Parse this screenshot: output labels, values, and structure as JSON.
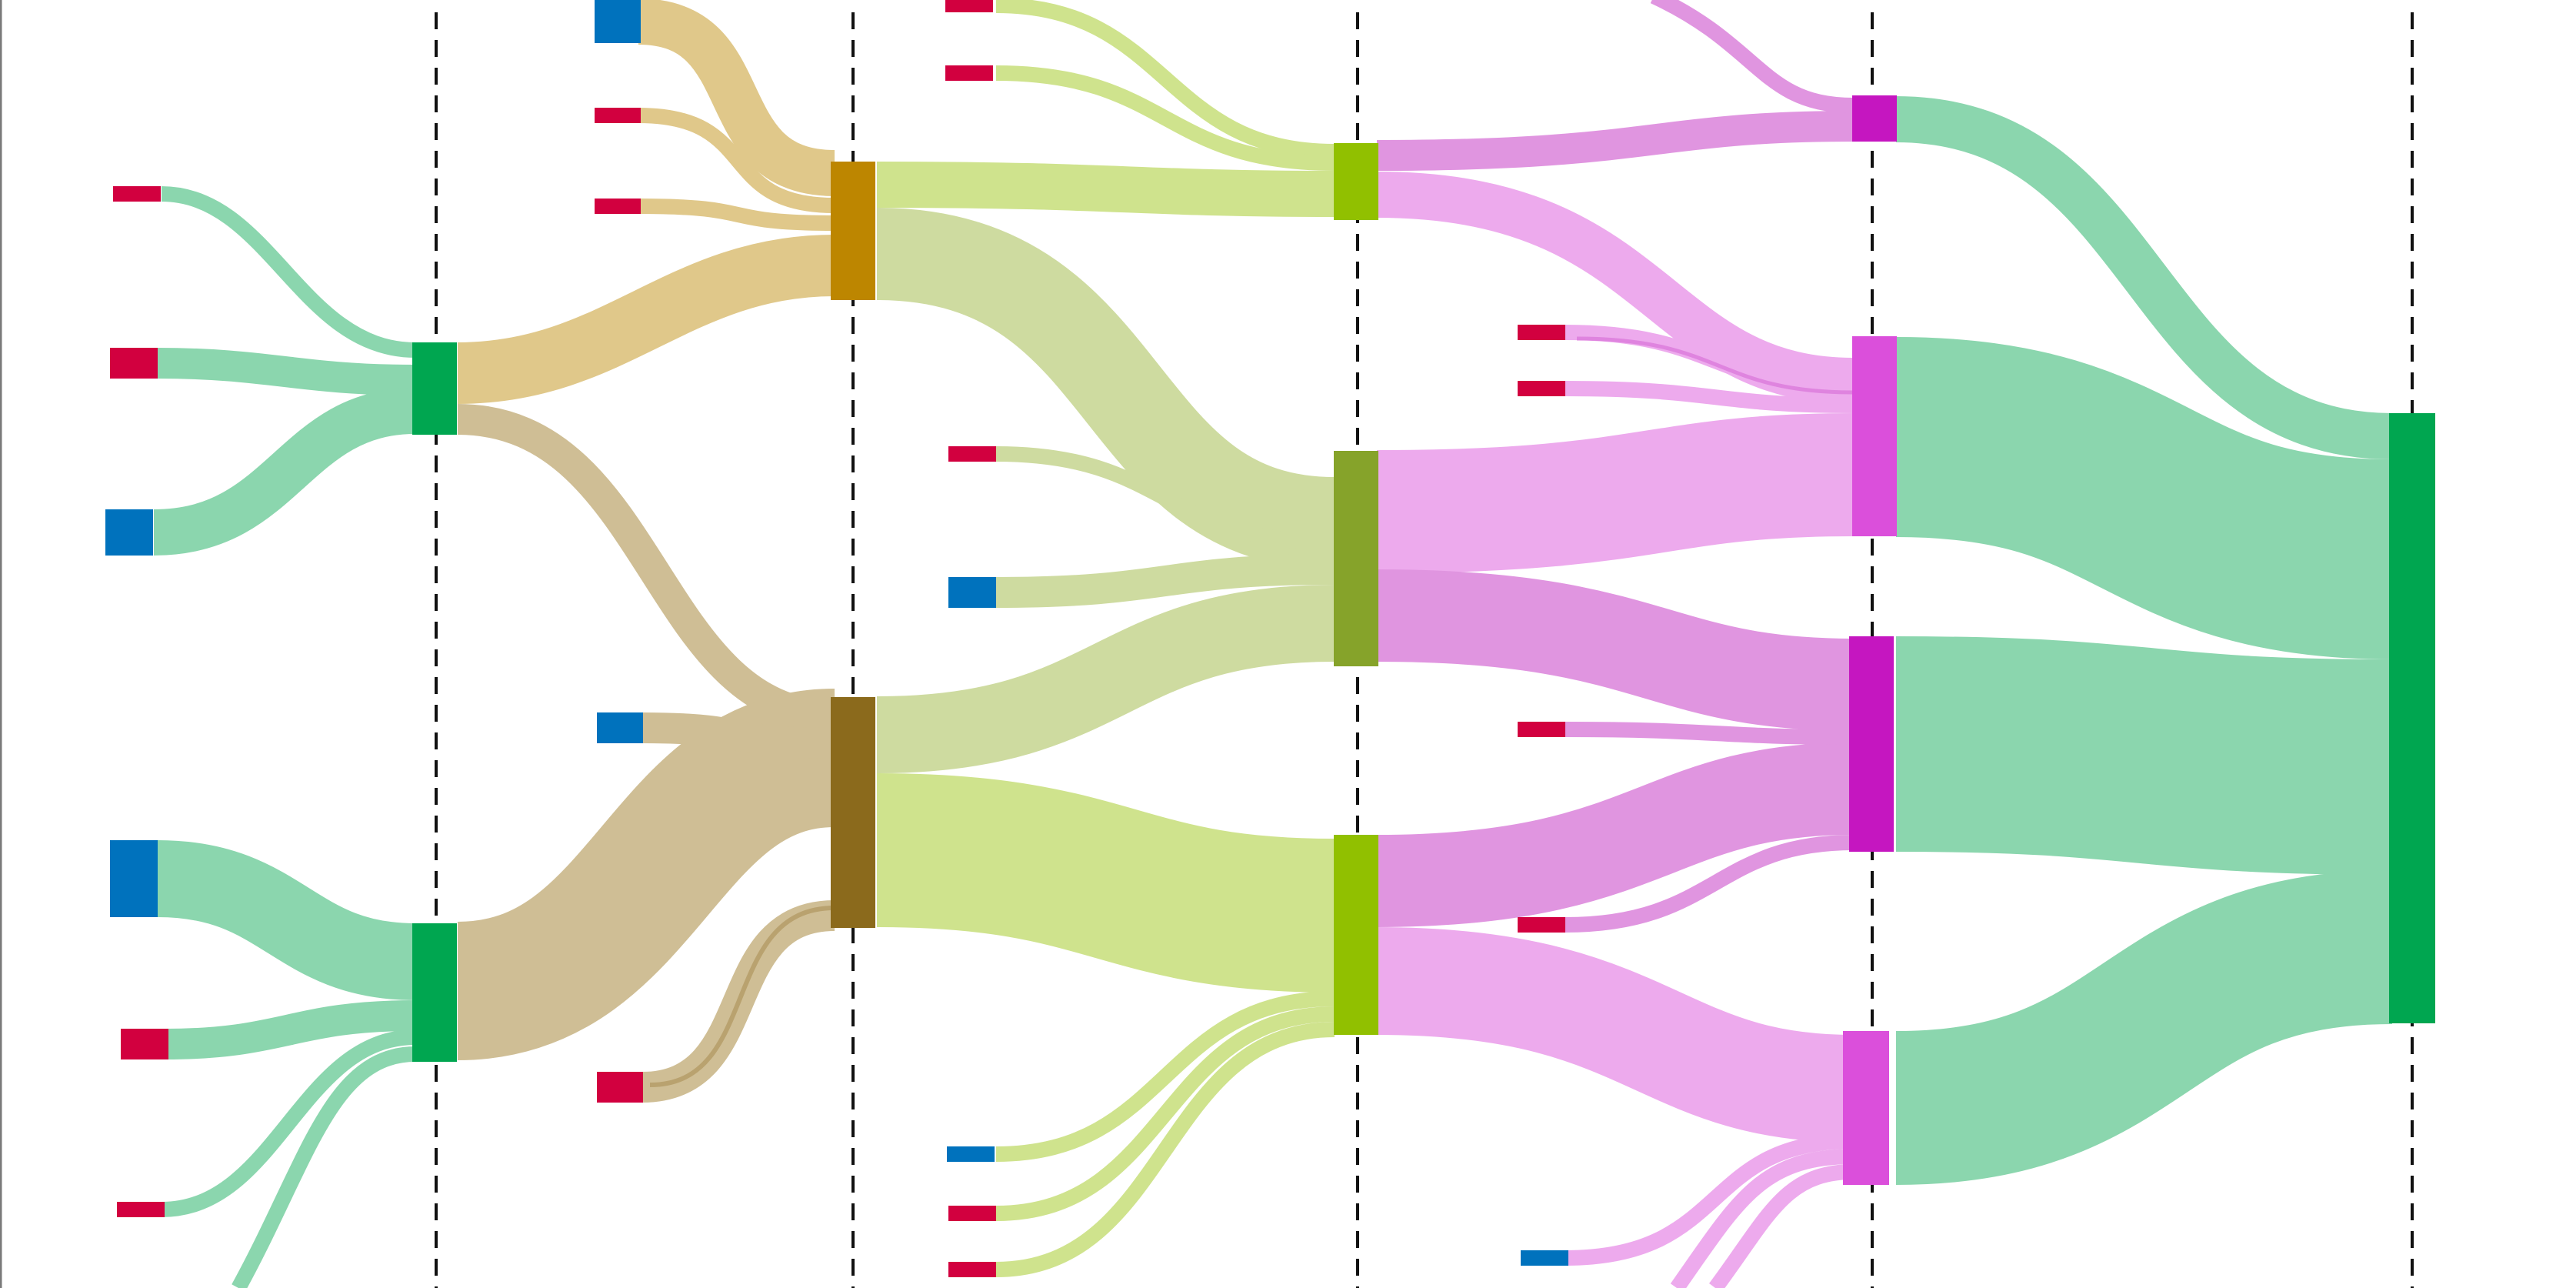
{
  "diagram": {
    "type": "sankey",
    "colors": {
      "leaf_red": "#d2003f",
      "leaf_blue": "#0072bd",
      "stage1_node": "#00a650",
      "stage1_flow": "#8bd6ae",
      "stage2_node_top": "#bd8600",
      "stage2_flow_top": "#e0c88a",
      "stage2_node_bottom": "#8b6a1c",
      "stage2_flow_bottom": "#cfbe95",
      "stage3_node_bright": "#91c000",
      "stage3_node_olive": "#86a32a",
      "stage3_flow_bright": "#cfe38d",
      "stage3_flow_olive": "#cedba0",
      "stage4_node_magenta": "#c516c0",
      "stage4_node_pink": "#db4fdb",
      "stage4_flow_magenta": "#e095e0",
      "stage4_flow_pink": "#edaaed",
      "root_node": "#00a650",
      "root_flow": "#8bd6ae",
      "guide": "#111111"
    },
    "stages": [
      "stage-1",
      "stage-2",
      "stage-3",
      "stage-4",
      "stage-5"
    ],
    "nodes": [
      {
        "id": "s1-top",
        "stage": 1,
        "kind": "node",
        "color_key": "stage1_node"
      },
      {
        "id": "s1-bottom",
        "stage": 1,
        "kind": "node",
        "color_key": "stage1_node"
      },
      {
        "id": "s2-top",
        "stage": 2,
        "kind": "node",
        "color_key": "stage2_node_top"
      },
      {
        "id": "s2-bottom",
        "stage": 2,
        "kind": "node",
        "color_key": "stage2_node_bottom"
      },
      {
        "id": "s3-a",
        "stage": 3,
        "kind": "node",
        "color_key": "stage3_node_bright"
      },
      {
        "id": "s3-b",
        "stage": 3,
        "kind": "node",
        "color_key": "stage3_node_olive"
      },
      {
        "id": "s3-c",
        "stage": 3,
        "kind": "node",
        "color_key": "stage3_node_bright"
      },
      {
        "id": "s4-a",
        "stage": 4,
        "kind": "node",
        "color_key": "stage4_node_magenta"
      },
      {
        "id": "s4-b",
        "stage": 4,
        "kind": "node",
        "color_key": "stage4_node_pink"
      },
      {
        "id": "s4-c",
        "stage": 4,
        "kind": "node",
        "color_key": "stage4_node_magenta"
      },
      {
        "id": "s4-d",
        "stage": 4,
        "kind": "node",
        "color_key": "stage4_node_pink"
      },
      {
        "id": "root",
        "stage": 5,
        "kind": "node",
        "color_key": "root_node"
      }
    ],
    "leaf_count": 27
  }
}
